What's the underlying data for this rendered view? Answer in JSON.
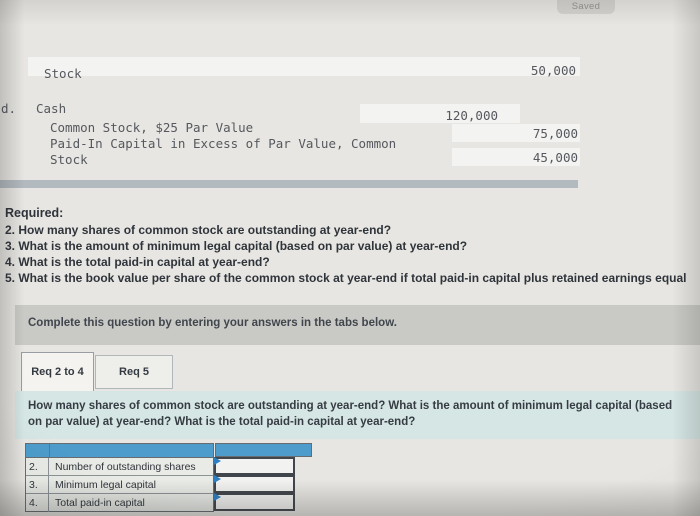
{
  "status": {
    "saved_label": "Saved"
  },
  "journal_entry": {
    "prior_line": {
      "account_wrap": "Stock",
      "amount": "50,000"
    },
    "entry_letter": "d.",
    "rows": [
      {
        "account": "Cash",
        "amount": "120,000",
        "side": "debit"
      },
      {
        "account": "Common Stock, $25 Par Value",
        "amount": "75,000",
        "side": "credit"
      },
      {
        "account": "Paid-In Capital in Excess of Par Value, Common Stock",
        "amount": "45,000",
        "side": "credit"
      }
    ]
  },
  "required_section": {
    "heading": "Required:",
    "items": [
      "2. How many shares of common stock are outstanding at year-end?",
      "3. What is the amount of minimum legal capital (based on par value) at year-end?",
      "4. What is the total paid-in capital at year-end?",
      "5. What is the book value per share of the common stock at year-end if total paid-in capital plus retained earnings equal"
    ]
  },
  "instruction_bar": {
    "text": "Complete this question by entering your answers in the tabs below."
  },
  "tabs": [
    {
      "label": "Req 2 to 4",
      "active": true
    },
    {
      "label": "Req 5",
      "active": false
    }
  ],
  "question_panel": {
    "text": "How many shares of common stock are outstanding at year-end? What is the amount of minimum legal capital (based on par value) at year-end? What is the total paid-in capital at year-end?"
  },
  "answer_table": {
    "rows": [
      {
        "num": "2.",
        "label": "Number of outstanding shares",
        "value": ""
      },
      {
        "num": "3.",
        "label": "Minimum legal capital",
        "value": ""
      },
      {
        "num": "4.",
        "label": "Total paid-in capital",
        "value": ""
      }
    ]
  },
  "colors": {
    "table_header_blue": "#4d9ccb",
    "marker_blue": "#2e7ec2",
    "question_panel_teal": "#d5e6e4",
    "instruction_bar_gray": "#c9cac6"
  }
}
